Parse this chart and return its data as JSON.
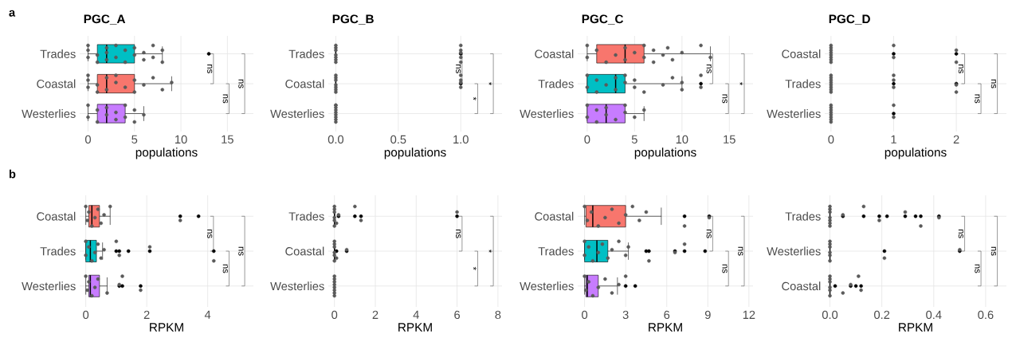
{
  "chart_data": [
    {
      "type": "box",
      "orientation": "horizontal",
      "title": "PGC_A",
      "xlabel": "populations",
      "categories": [
        "Trades",
        "Coastal",
        "Westerlies"
      ],
      "colors": [
        "#00BFC4",
        "#F8766D",
        "#C77CFF"
      ],
      "xlim": [
        -0.9,
        17.8
      ],
      "xticks": [
        0,
        5,
        10,
        15
      ],
      "grid": true,
      "annotations": [
        "a",
        "ns",
        "ns",
        "ns"
      ],
      "boxes": [
        {
          "low": 0,
          "q1": 1,
          "median": 2,
          "q3": 5,
          "high": 8,
          "outliers": [
            13
          ]
        },
        {
          "low": 0,
          "q1": 1,
          "median": 2,
          "q3": 5,
          "high": 9
        },
        {
          "low": 0,
          "q1": 1,
          "median": 2,
          "q3": 4,
          "high": 6
        }
      ],
      "series": [
        {
          "type": "scatter",
          "marker": "circle",
          "color": "#5a5a5a",
          "x": [
            "Trades",
            "Trades",
            "Trades",
            "Trades",
            "Trades",
            "Trades",
            "Trades",
            "Trades",
            "Trades",
            "Trades",
            "Trades",
            "Trades",
            "Trades",
            "Trades",
            "Trades",
            "Trades",
            "Trades",
            "Trades",
            "Trades",
            "Trades",
            "Coastal",
            "Coastal",
            "Coastal",
            "Coastal",
            "Coastal",
            "Coastal",
            "Coastal",
            "Coastal",
            "Coastal",
            "Coastal",
            "Coastal",
            "Coastal",
            "Coastal",
            "Coastal",
            "Coastal",
            "Coastal",
            "Westerlies",
            "Westerlies",
            "Westerlies",
            "Westerlies",
            "Westerlies",
            "Westerlies",
            "Westerlies",
            "Westerlies",
            "Westerlies",
            "Westerlies",
            "Westerlies",
            "Westerlies",
            "Westerlies"
          ],
          "values": [
            0,
            0,
            0,
            1,
            1,
            2,
            2,
            2,
            3,
            3,
            4,
            4,
            5,
            5,
            6,
            6,
            7,
            7,
            8,
            8,
            0,
            0,
            0,
            1,
            1,
            2,
            2,
            3,
            3,
            4,
            5,
            5,
            6,
            7,
            8,
            9,
            0,
            0,
            1,
            1,
            2,
            2,
            3,
            3,
            4,
            4,
            5,
            5,
            6
          ]
        }
      ]
    },
    {
      "type": "box",
      "orientation": "horizontal",
      "title": "PGC_B",
      "xlabel": "populations",
      "categories": [
        "Trades",
        "Coastal",
        "Westerlies"
      ],
      "xlim": [
        -0.06,
        1.33
      ],
      "xticks": [
        {
          "value": 0,
          "label": "0.0"
        },
        {
          "value": 0.5,
          "label": "0.5"
        },
        {
          "value": 1,
          "label": "1.0"
        }
      ],
      "grid": true,
      "annotations": [
        "ns",
        "*",
        "*"
      ],
      "boxes": [
        {
          "low": 0,
          "q1": 0,
          "median": 0,
          "q3": 0,
          "high": 0,
          "outliers": [
            1
          ]
        },
        {
          "low": 0,
          "q1": 0,
          "median": 0,
          "q3": 0,
          "high": 0,
          "outliers": [
            1
          ]
        },
        {
          "low": 0,
          "q1": 0,
          "median": 0,
          "q3": 0,
          "high": 0
        }
      ],
      "series": [
        {
          "type": "scatter",
          "marker": "circle",
          "color": "#5a5a5a",
          "x": [
            "Trades",
            "Trades",
            "Trades",
            "Trades",
            "Trades",
            "Trades",
            "Trades",
            "Trades",
            "Trades",
            "Trades",
            "Trades",
            "Trades",
            "Coastal",
            "Coastal",
            "Coastal",
            "Coastal",
            "Coastal",
            "Coastal",
            "Coastal",
            "Coastal",
            "Coastal",
            "Coastal",
            "Coastal",
            "Westerlies",
            "Westerlies",
            "Westerlies",
            "Westerlies",
            "Westerlies",
            "Westerlies",
            "Westerlies",
            "Westerlies",
            "Westerlies"
          ],
          "values": [
            0,
            0,
            0,
            0,
            0,
            0,
            0,
            1,
            1,
            1,
            1,
            1,
            0,
            0,
            0,
            0,
            0,
            0,
            0,
            1,
            1,
            1,
            1,
            0,
            0,
            0,
            0,
            0,
            0,
            0,
            0,
            0
          ]
        }
      ]
    },
    {
      "type": "box",
      "orientation": "horizontal",
      "title": "PGC_C",
      "xlabel": "populations",
      "categories": [
        "Coastal",
        "Trades",
        "Westerlies"
      ],
      "colors": [
        "#F8766D",
        "#00BFC4",
        "#C77CFF"
      ],
      "xlim": [
        -1,
        17.5
      ],
      "xticks": [
        0,
        5,
        10,
        15
      ],
      "grid": true,
      "annotations": [
        "ns",
        "ns",
        "*"
      ],
      "boxes": [
        {
          "low": 0,
          "q1": 1,
          "median": 4,
          "q3": 6,
          "high": 13
        },
        {
          "low": 0,
          "q1": 0,
          "median": 3,
          "q3": 4,
          "high": 10,
          "outliers": [
            12
          ]
        },
        {
          "low": 0,
          "q1": 0,
          "median": 2,
          "q3": 4,
          "high": 6
        }
      ],
      "series": [
        {
          "type": "scatter",
          "marker": "circle",
          "color": "#5a5a5a",
          "x": [
            "Coastal",
            "Coastal",
            "Coastal",
            "Coastal",
            "Coastal",
            "Coastal",
            "Coastal",
            "Coastal",
            "Coastal",
            "Coastal",
            "Coastal",
            "Coastal",
            "Coastal",
            "Coastal",
            "Coastal",
            "Coastal",
            "Coastal",
            "Coastal",
            "Trades",
            "Trades",
            "Trades",
            "Trades",
            "Trades",
            "Trades",
            "Trades",
            "Trades",
            "Trades",
            "Trades",
            "Trades",
            "Trades",
            "Trades",
            "Trades",
            "Trades",
            "Trades",
            "Trades",
            "Trades",
            "Westerlies",
            "Westerlies",
            "Westerlies",
            "Westerlies",
            "Westerlies",
            "Westerlies",
            "Westerlies",
            "Westerlies",
            "Westerlies",
            "Westerlies",
            "Westerlies"
          ],
          "values": [
            0,
            0,
            1,
            2,
            3,
            4,
            4,
            5,
            6,
            6,
            7,
            7,
            8,
            8.5,
            9,
            10,
            12,
            13,
            0,
            0,
            1,
            1,
            2,
            3,
            3,
            4,
            4,
            5,
            5,
            6,
            8,
            9,
            10,
            10,
            12,
            12,
            0,
            0,
            1,
            1,
            2,
            2,
            3,
            4,
            4,
            5,
            6
          ]
        }
      ]
    },
    {
      "type": "box",
      "orientation": "horizontal",
      "title": "PGC_D",
      "xlabel": "populations",
      "categories": [
        "Coastal",
        "Trades",
        "Westerlies"
      ],
      "xlim": [
        -0.1,
        2.8
      ],
      "xticks": [
        0,
        1,
        2
      ],
      "grid": true,
      "annotations": [
        "ns",
        "ns",
        "ns"
      ],
      "boxes": [
        {
          "low": 0,
          "q1": 0,
          "median": 0,
          "q3": 0,
          "high": 0,
          "outliers": [
            1,
            2
          ]
        },
        {
          "low": 0,
          "q1": 0,
          "median": 0,
          "q3": 0,
          "high": 0,
          "outliers": [
            1,
            2
          ]
        },
        {
          "low": 0,
          "q1": 0,
          "median": 0,
          "q3": 0,
          "high": 0,
          "outliers": [
            1
          ]
        }
      ],
      "series": [
        {
          "type": "scatter",
          "marker": "circle",
          "color": "#5a5a5a",
          "x": [
            "Coastal",
            "Coastal",
            "Coastal",
            "Coastal",
            "Coastal",
            "Coastal",
            "Coastal",
            "Coastal",
            "Coastal",
            "Coastal",
            "Coastal",
            "Coastal",
            "Trades",
            "Trades",
            "Trades",
            "Trades",
            "Trades",
            "Trades",
            "Trades",
            "Trades",
            "Trades",
            "Trades",
            "Trades",
            "Trades",
            "Trades",
            "Westerlies",
            "Westerlies",
            "Westerlies",
            "Westerlies",
            "Westerlies",
            "Westerlies",
            "Westerlies",
            "Westerlies",
            "Westerlies",
            "Westerlies"
          ],
          "values": [
            0,
            0,
            0,
            0,
            0,
            0,
            0,
            0,
            1,
            1,
            2,
            2,
            0,
            0,
            0,
            0,
            0,
            0,
            0,
            0,
            1,
            1,
            1,
            2,
            2,
            0,
            0,
            0,
            0,
            0,
            0,
            0,
            0,
            1,
            1
          ]
        }
      ]
    },
    {
      "type": "box",
      "orientation": "horizontal",
      "xlabel": "RPKM",
      "categories": [
        "Coastal",
        "Trades",
        "Westerlies"
      ],
      "colors": [
        "#F8766D",
        "#00BFC4",
        "#C77CFF"
      ],
      "xlim": [
        -0.2,
        5.5
      ],
      "xticks": [
        0,
        2,
        4
      ],
      "grid": true,
      "annotations": [
        "b",
        "ns",
        "ns",
        "ns"
      ],
      "boxes": [
        {
          "low": 0,
          "q1": 0.1,
          "median": 0.2,
          "q3": 0.45,
          "high": 0.8,
          "outliers": [
            3.1,
            3.7
          ]
        },
        {
          "low": 0,
          "q1": 0,
          "median": 0.15,
          "q3": 0.35,
          "high": 0.55,
          "outliers": [
            1,
            1.1,
            1.4,
            2.1,
            4.2
          ]
        },
        {
          "low": 0,
          "q1": 0.1,
          "median": 0.15,
          "q3": 0.45,
          "high": 0.7,
          "outliers": [
            1.1,
            1.2,
            1.8
          ]
        }
      ],
      "series": [
        {
          "type": "scatter",
          "marker": "circle",
          "color": "#5a5a5a",
          "x": [
            "Coastal",
            "Coastal",
            "Coastal",
            "Coastal",
            "Coastal",
            "Coastal",
            "Coastal",
            "Coastal",
            "Coastal",
            "Coastal",
            "Trades",
            "Trades",
            "Trades",
            "Trades",
            "Trades",
            "Trades",
            "Trades",
            "Trades",
            "Trades",
            "Trades",
            "Trades",
            "Trades",
            "Westerlies",
            "Westerlies",
            "Westerlies",
            "Westerlies",
            "Westerlies",
            "Westerlies",
            "Westerlies",
            "Westerlies",
            "Westerlies",
            "Westerlies"
          ],
          "values": [
            0,
            0.05,
            0.1,
            0.2,
            0.3,
            0.4,
            0.5,
            0.6,
            0.8,
            3.1,
            0,
            0,
            0.1,
            0.2,
            0.3,
            0.4,
            0.5,
            0.6,
            1,
            1.1,
            2.1,
            4.2,
            0,
            0.05,
            0.1,
            0.2,
            0.3,
            0.4,
            0.7,
            1.1,
            1.2,
            1.8
          ]
        }
      ]
    },
    {
      "type": "box",
      "orientation": "horizontal",
      "xlabel": "RPKM",
      "categories": [
        "Trades",
        "Coastal",
        "Westerlies"
      ],
      "xlim": [
        -0.3,
        8.2
      ],
      "xticks": [
        0,
        2,
        4,
        6,
        8
      ],
      "grid": true,
      "annotations": [
        "ns",
        "*",
        "*"
      ],
      "boxes": [
        {
          "low": 0,
          "q1": 0,
          "median": 0,
          "q3": 0,
          "high": 0,
          "outliers": [
            0.2,
            1,
            1.3,
            6
          ]
        },
        {
          "low": 0,
          "q1": 0,
          "median": 0,
          "q3": 0,
          "high": 0,
          "outliers": [
            0.1,
            0.6
          ]
        },
        {
          "low": 0,
          "q1": 0,
          "median": 0,
          "q3": 0,
          "high": 0
        }
      ],
      "series": [
        {
          "type": "scatter",
          "marker": "circle",
          "color": "#5a5a5a",
          "x": [
            "Trades",
            "Trades",
            "Trades",
            "Trades",
            "Trades",
            "Trades",
            "Trades",
            "Trades",
            "Trades",
            "Trades",
            "Trades",
            "Coastal",
            "Coastal",
            "Coastal",
            "Coastal",
            "Coastal",
            "Coastal",
            "Coastal",
            "Coastal",
            "Westerlies",
            "Westerlies",
            "Westerlies",
            "Westerlies",
            "Westerlies",
            "Westerlies",
            "Westerlies",
            "Westerlies"
          ],
          "values": [
            0,
            0,
            0,
            0,
            0,
            0,
            0.1,
            0.2,
            1,
            1.3,
            6,
            0,
            0,
            0,
            0,
            0,
            0,
            0.1,
            0.6,
            0,
            0,
            0,
            0,
            0,
            0,
            0,
            0
          ]
        }
      ]
    },
    {
      "type": "box",
      "orientation": "horizontal",
      "xlabel": "RPKM",
      "categories": [
        "Coastal",
        "Trades",
        "Westerlies"
      ],
      "colors": [
        "#F8766D",
        "#00BFC4",
        "#C77CFF"
      ],
      "xlim": [
        -0.5,
        12.3
      ],
      "xticks": [
        0,
        3,
        6,
        9,
        12
      ],
      "grid": true,
      "annotations": [
        "ns",
        "ns",
        "ns"
      ],
      "boxes": [
        {
          "low": 0,
          "q1": 0.1,
          "median": 0.6,
          "q3": 3,
          "high": 5.6,
          "outliers": [
            7.3,
            9.1
          ]
        },
        {
          "low": 0,
          "q1": 0,
          "median": 0.9,
          "q3": 1.7,
          "high": 3.2,
          "outliers": [
            4.5,
            4.7,
            6.6,
            7.3,
            8.8
          ]
        },
        {
          "low": 0,
          "q1": 0.1,
          "median": 0.2,
          "q3": 1,
          "high": 2.4,
          "outliers": [
            3,
            3.7
          ]
        }
      ],
      "series": [
        {
          "type": "scatter",
          "marker": "circle",
          "color": "#5a5a5a",
          "x": [
            "Coastal",
            "Coastal",
            "Coastal",
            "Coastal",
            "Coastal",
            "Coastal",
            "Coastal",
            "Coastal",
            "Coastal",
            "Coastal",
            "Coastal",
            "Coastal",
            "Coastal",
            "Trades",
            "Trades",
            "Trades",
            "Trades",
            "Trades",
            "Trades",
            "Trades",
            "Trades",
            "Trades",
            "Trades",
            "Trades",
            "Trades",
            "Trades",
            "Trades",
            "Westerlies",
            "Westerlies",
            "Westerlies",
            "Westerlies",
            "Westerlies",
            "Westerlies",
            "Westerlies",
            "Westerlies",
            "Westerlies"
          ],
          "values": [
            0,
            0.2,
            0.5,
            1,
            1.5,
            2,
            2.5,
            3,
            3.5,
            4,
            4.5,
            7.3,
            9.1,
            0,
            0,
            0.3,
            0.6,
            1,
            1.3,
            1.7,
            2,
            2.5,
            3,
            3.2,
            4.7,
            6.6,
            7.3,
            0,
            0.1,
            0.3,
            0.6,
            1,
            1.5,
            2,
            2.5,
            3
          ]
        }
      ]
    },
    {
      "type": "box",
      "orientation": "horizontal",
      "xlabel": "RPKM",
      "categories": [
        "Trades",
        "Westerlies",
        "Coastal"
      ],
      "xlim": [
        -0.02,
        0.68
      ],
      "xticks": [
        {
          "value": 0,
          "label": "0.0"
        },
        {
          "value": 0.2,
          "label": "0.2"
        },
        {
          "value": 0.4,
          "label": "0.4"
        },
        {
          "value": 0.6,
          "label": "0.6"
        }
      ],
      "grid": true,
      "annotations": [
        "ns",
        "ns",
        "ns"
      ],
      "boxes": [
        {
          "low": 0,
          "q1": 0,
          "median": 0,
          "q3": 0,
          "high": 0,
          "outliers": [
            0.05,
            0.13,
            0.19,
            0.22,
            0.29,
            0.33,
            0.35,
            0.42
          ]
        },
        {
          "low": 0,
          "q1": 0,
          "median": 0,
          "q3": 0,
          "high": 0,
          "outliers": [
            0.21,
            0.5
          ]
        },
        {
          "low": 0,
          "q1": 0,
          "median": 0,
          "q3": 0,
          "high": 0,
          "outliers": [
            0.02,
            0.08,
            0.1,
            0.12
          ]
        }
      ],
      "series": [
        {
          "type": "scatter",
          "marker": "circle",
          "color": "#5a5a5a",
          "x": [
            "Trades",
            "Trades",
            "Trades",
            "Trades",
            "Trades",
            "Trades",
            "Trades",
            "Trades",
            "Trades",
            "Trades",
            "Trades",
            "Trades",
            "Trades",
            "Westerlies",
            "Westerlies",
            "Westerlies",
            "Westerlies",
            "Westerlies",
            "Westerlies",
            "Westerlies",
            "Westerlies",
            "Coastal",
            "Coastal",
            "Coastal",
            "Coastal",
            "Coastal",
            "Coastal",
            "Coastal",
            "Coastal",
            "Coastal",
            "Coastal"
          ],
          "values": [
            0,
            0,
            0,
            0,
            0,
            0,
            0,
            0.05,
            0.13,
            0.19,
            0.29,
            0.35,
            0.42,
            0,
            0,
            0,
            0,
            0,
            0,
            0.21,
            0.5,
            0,
            0,
            0,
            0,
            0,
            0,
            0.05,
            0.08,
            0.11,
            0.12
          ]
        }
      ]
    }
  ]
}
